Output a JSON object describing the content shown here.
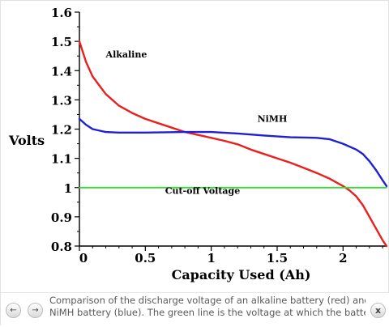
{
  "chart_data": {
    "type": "line",
    "title": "",
    "xlabel": "Capacity Used (Ah)",
    "ylabel": "Volts",
    "xlim": [
      0,
      2.33
    ],
    "ylim": [
      0.8,
      1.6
    ],
    "x_ticks": [
      "0",
      "0.5",
      "1",
      "1.5",
      "2"
    ],
    "x_tick_values": [
      0,
      0.5,
      1,
      1.5,
      2
    ],
    "y_ticks": [
      "0.8",
      "0.9",
      "1",
      "1.1",
      "1.2",
      "1.3",
      "1.4",
      "1.5",
      "1.6"
    ],
    "y_tick_values": [
      0.8,
      0.9,
      1.0,
      1.1,
      1.2,
      1.3,
      1.4,
      1.5,
      1.6
    ],
    "grid": false,
    "series": [
      {
        "name": "Alkaline",
        "color": "#e8201e",
        "x": [
          0,
          0.05,
          0.1,
          0.2,
          0.3,
          0.4,
          0.5,
          0.6,
          0.7,
          0.8,
          0.9,
          1.0,
          1.1,
          1.2,
          1.3,
          1.4,
          1.5,
          1.6,
          1.7,
          1.8,
          1.9,
          2.0,
          2.05,
          2.1,
          2.15,
          2.2,
          2.25,
          2.3,
          2.33
        ],
        "values": [
          1.5,
          1.43,
          1.38,
          1.32,
          1.28,
          1.255,
          1.235,
          1.22,
          1.205,
          1.19,
          1.18,
          1.17,
          1.16,
          1.148,
          1.13,
          1.115,
          1.1,
          1.085,
          1.068,
          1.05,
          1.03,
          1.005,
          0.99,
          0.97,
          0.94,
          0.9,
          0.86,
          0.82,
          0.8
        ]
      },
      {
        "name": "NiMH",
        "color": "#1f1fd6",
        "x": [
          0,
          0.05,
          0.1,
          0.2,
          0.3,
          0.5,
          0.8,
          1.0,
          1.2,
          1.4,
          1.6,
          1.8,
          1.9,
          2.0,
          2.1,
          2.15,
          2.2,
          2.25,
          2.3,
          2.33
        ],
        "values": [
          1.235,
          1.215,
          1.2,
          1.19,
          1.188,
          1.188,
          1.19,
          1.19,
          1.185,
          1.178,
          1.172,
          1.17,
          1.165,
          1.15,
          1.13,
          1.115,
          1.09,
          1.06,
          1.025,
          1.005
        ]
      },
      {
        "name": "Cut-off Voltage",
        "color": "#33dd33",
        "x": [
          0,
          2.33
        ],
        "values": [
          1.0,
          1.0
        ]
      }
    ],
    "annotations": [
      {
        "text": "Alkaline",
        "x": 0.2,
        "y": 1.445
      },
      {
        "text": "NiMH",
        "x": 1.35,
        "y": 1.225
      },
      {
        "text": "Cut-off Voltage",
        "x": 0.65,
        "y": 0.978
      }
    ]
  },
  "caption": {
    "line1": "Comparison of the discharge voltage of an alkaline battery (red) and a",
    "line2": "NiMH battery (blue). The green line is the voltage at which the battery is"
  },
  "nav": {
    "prev_symbol": "←",
    "next_symbol": "→",
    "close_symbol": "x"
  }
}
